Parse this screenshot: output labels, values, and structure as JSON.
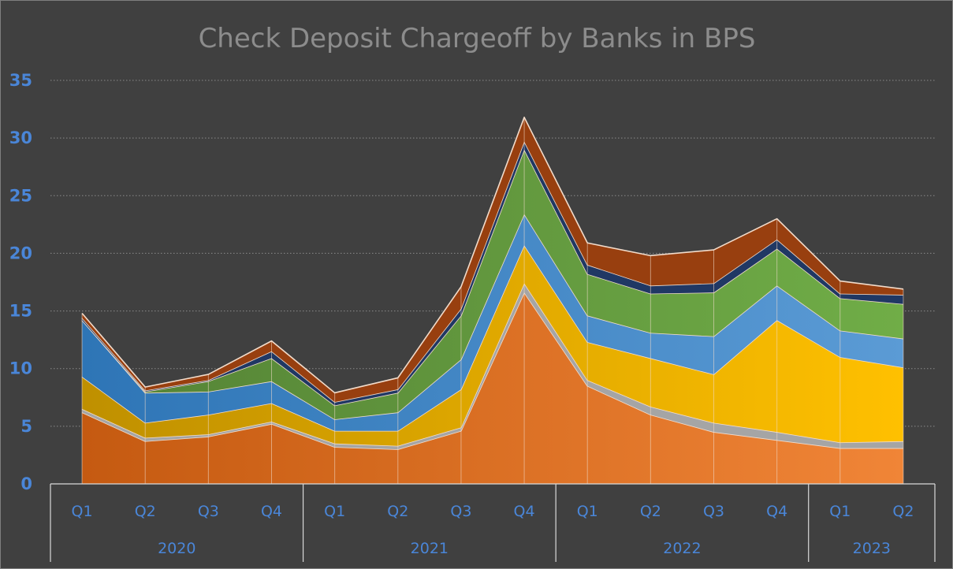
{
  "chart_data": {
    "type": "area",
    "stacked": true,
    "title": "Check Deposit Chargeoff by Banks in BPS",
    "xlabel": "",
    "ylabel": "",
    "ylim": [
      0,
      35
    ],
    "yticks": [
      0,
      5,
      10,
      15,
      20,
      25,
      30,
      35
    ],
    "grid": true,
    "legend": "none",
    "categories": [
      "Q1",
      "Q2",
      "Q3",
      "Q4",
      "Q1",
      "Q2",
      "Q3",
      "Q4",
      "Q1",
      "Q2",
      "Q3",
      "Q4",
      "Q1",
      "Q2"
    ],
    "groups": [
      {
        "label": "2020",
        "count": 4
      },
      {
        "label": "2021",
        "count": 4
      },
      {
        "label": "2022",
        "count": 4
      },
      {
        "label": "2023",
        "count": 2
      }
    ],
    "series": [
      {
        "color": "#e06a1f",
        "values": [
          6.2,
          3.7,
          4.1,
          5.2,
          3.2,
          3.0,
          4.6,
          16.6,
          8.5,
          6.0,
          4.5,
          3.8,
          3.1,
          3.1
        ]
      },
      {
        "color": "#a5a5a5",
        "values": [
          0.3,
          0.3,
          0.2,
          0.2,
          0.3,
          0.3,
          0.3,
          0.8,
          0.5,
          0.7,
          0.8,
          0.7,
          0.5,
          0.6
        ]
      },
      {
        "color": "#f0b000",
        "values": [
          2.8,
          1.3,
          1.7,
          1.6,
          1.1,
          1.3,
          3.3,
          3.3,
          3.3,
          4.2,
          4.2,
          9.7,
          7.4,
          6.4
        ]
      },
      {
        "color": "#4f8fd6",
        "values": [
          4.9,
          2.6,
          2.0,
          1.9,
          1.0,
          1.6,
          2.6,
          2.7,
          2.3,
          2.2,
          3.3,
          3.0,
          2.3,
          2.5
        ]
      },
      {
        "color": "#6aa84f",
        "values": [
          0.0,
          0.1,
          0.9,
          2.0,
          1.2,
          1.7,
          3.8,
          5.6,
          3.6,
          3.4,
          3.8,
          3.2,
          2.8,
          3.0
        ]
      },
      {
        "color": "#203864",
        "values": [
          0.2,
          0.1,
          0.1,
          0.6,
          0.3,
          0.3,
          0.6,
          0.7,
          0.8,
          0.7,
          0.8,
          0.8,
          0.4,
          0.8
        ]
      },
      {
        "color": "#983f0f",
        "values": [
          0.4,
          0.3,
          0.5,
          0.9,
          0.8,
          1.0,
          1.9,
          2.1,
          1.9,
          2.6,
          2.9,
          1.8,
          1.1,
          0.5
        ]
      }
    ]
  }
}
